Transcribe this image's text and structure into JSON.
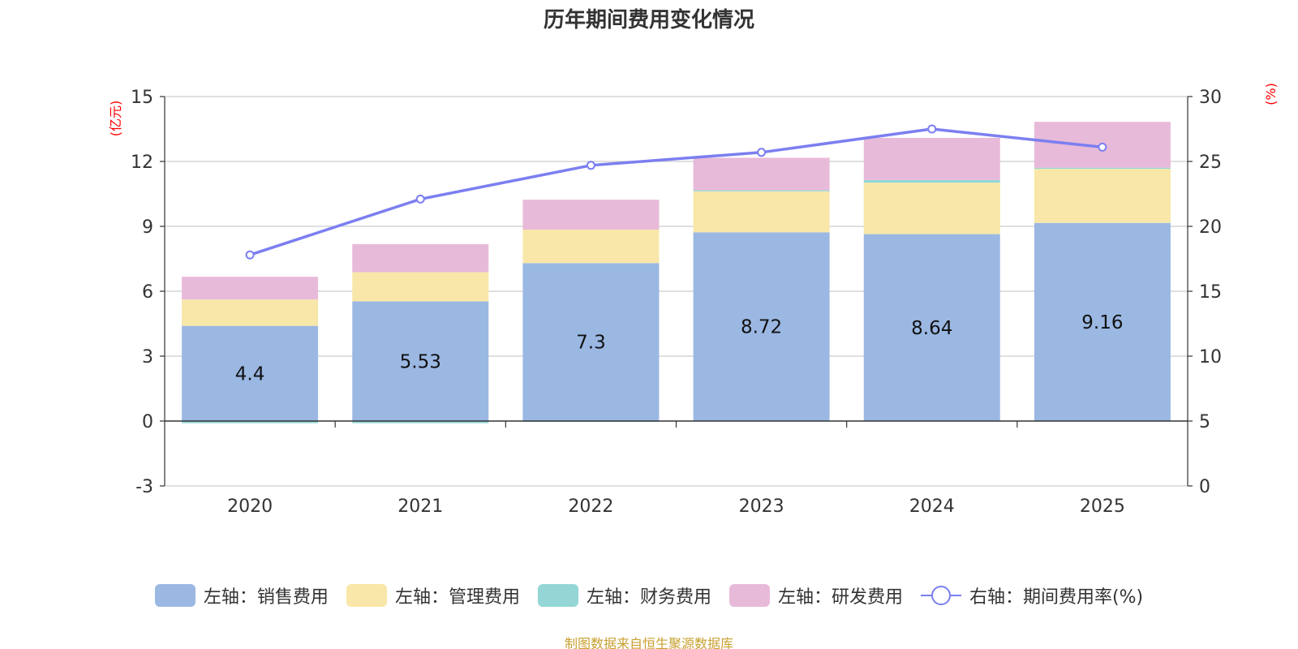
{
  "colors": {
    "sales": "#9bb8e3",
    "admin": "#f8e7a8",
    "finance": "#94d6d6",
    "rd": "#e8bad9",
    "rate": "#7b7ff0",
    "axis_unit": "#ff0000",
    "source": "#c8a030"
  },
  "chart_data": {
    "type": "bar",
    "stacked": true,
    "title": "历年期间费用变化情况",
    "categories": [
      "2020",
      "2021",
      "2022",
      "2023",
      "2024",
      "2025"
    ],
    "left_axis": {
      "unit": "(亿元)",
      "range": [
        -3,
        15
      ],
      "ticks": [
        "-3",
        "0",
        "3",
        "6",
        "9",
        "12",
        "15"
      ]
    },
    "right_axis": {
      "unit": "(%)",
      "range": [
        0,
        30
      ],
      "ticks": [
        "0",
        "5",
        "10",
        "15",
        "20",
        "25",
        "30"
      ]
    },
    "series": [
      {
        "name": "左轴：销售费用",
        "key": "sales",
        "axis": "left",
        "values": [
          4.4,
          5.53,
          7.3,
          8.72,
          8.64,
          9.16
        ],
        "labels": [
          "4.4",
          "5.53",
          "7.3",
          "8.72",
          "8.64",
          "9.16"
        ]
      },
      {
        "name": "左轴：管理费用",
        "key": "admin",
        "axis": "left",
        "values": [
          1.22,
          1.35,
          1.55,
          1.9,
          2.38,
          2.5
        ]
      },
      {
        "name": "左轴：财务费用",
        "key": "finance",
        "axis": "left",
        "values": [
          -0.1,
          -0.1,
          -0.03,
          0.05,
          0.12,
          0.05
        ]
      },
      {
        "name": "左轴：研发费用",
        "key": "rd",
        "axis": "left",
        "values": [
          1.05,
          1.3,
          1.38,
          1.5,
          1.95,
          2.12
        ]
      },
      {
        "name": "右轴：期间费用率(%)",
        "key": "rate",
        "axis": "right",
        "type": "line",
        "values": [
          17.8,
          22.1,
          24.7,
          25.7,
          27.5,
          26.1
        ]
      }
    ],
    "legend_position": "bottom"
  },
  "source_note": "制图数据来自恒生聚源数据库"
}
